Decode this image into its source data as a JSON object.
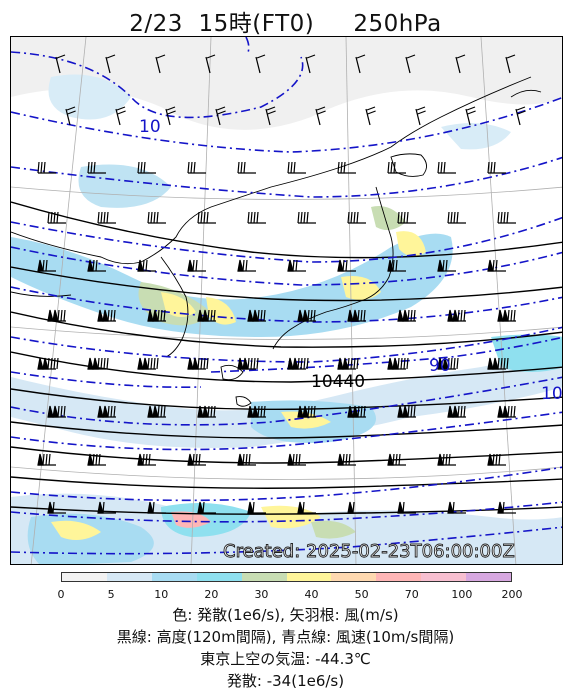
{
  "title": "2/23  15時(FT0)     250hPa",
  "credit": "Created: 2025-02-23T06:00:00Z",
  "contour_labels": {
    "height": "10440",
    "wind_left": "10",
    "wind_mid": "90",
    "wind_right": "10"
  },
  "colorbar": {
    "ticks": [
      "0",
      "5",
      "10",
      "20",
      "30",
      "40",
      "50",
      "70",
      "100",
      "200"
    ],
    "colors": [
      "#f2f2f2",
      "#d6e8f5",
      "#a8dcf2",
      "#8fe0ef",
      "#c8ddb3",
      "#fff59a",
      "#ffd9b0",
      "#ffb6b6",
      "#f7bfd0",
      "#d7a8e0"
    ]
  },
  "legend": {
    "line1": "色: 発散(1e6/s),  矢羽根: 風(m/s)",
    "line2": "黒線: 高度(120m間隔),  青点線: 風速(10m/s間隔)",
    "line3": "東京上空の気温: -44.3℃",
    "line4": "発散: -34(1e6/s)"
  },
  "colors": {
    "height_line": "#000000",
    "wind_line": "#1414c8",
    "coast": "#000000",
    "grid": "#b0b0b0"
  }
}
